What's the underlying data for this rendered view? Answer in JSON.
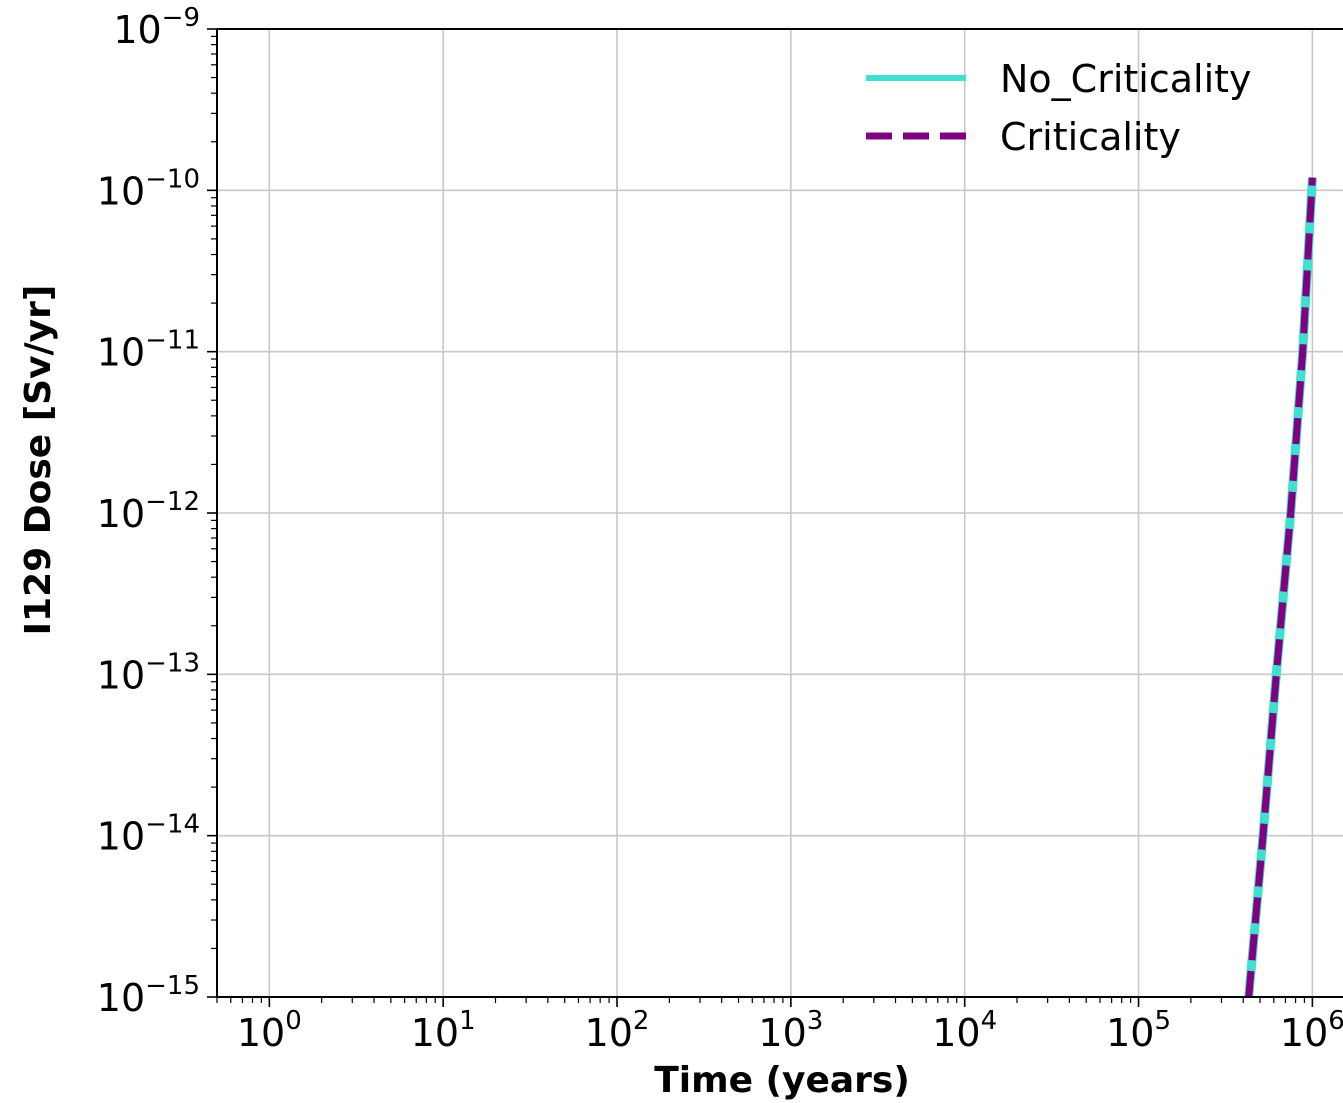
{
  "chart_data": {
    "type": "line",
    "xlabel": "Time (years)",
    "ylabel": "I129 Dose [Sv/yr]",
    "xscale": "log",
    "yscale": "log",
    "xlim": [
      0.5,
      1500000
    ],
    "ylim": [
      1e-15,
      1e-09
    ],
    "grid": true,
    "legend_position": "top-right",
    "x_ticks": [
      {
        "base": "10",
        "exp": "0",
        "value": 1
      },
      {
        "base": "10",
        "exp": "1",
        "value": 10
      },
      {
        "base": "10",
        "exp": "2",
        "value": 100
      },
      {
        "base": "10",
        "exp": "3",
        "value": 1000
      },
      {
        "base": "10",
        "exp": "4",
        "value": 10000
      },
      {
        "base": "10",
        "exp": "5",
        "value": 100000
      },
      {
        "base": "10",
        "exp": "6",
        "value": 1000000
      }
    ],
    "y_ticks": [
      {
        "base": "10",
        "exp": "−9",
        "value": 1e-09
      },
      {
        "base": "10",
        "exp": "−10",
        "value": 1e-10
      },
      {
        "base": "10",
        "exp": "−11",
        "value": 1e-11
      },
      {
        "base": "10",
        "exp": "−12",
        "value": 1e-12
      },
      {
        "base": "10",
        "exp": "−13",
        "value": 1e-13
      },
      {
        "base": "10",
        "exp": "−14",
        "value": 1e-14
      },
      {
        "base": "10",
        "exp": "−15",
        "value": 1e-15
      }
    ],
    "series": [
      {
        "name": "No_Criticality",
        "color": "#40e0d0",
        "style": "solid",
        "x": [
          430000,
          520000,
          620000,
          750000,
          880000,
          1000000
        ],
        "y": [
          1e-15,
          1e-14,
          1e-13,
          1e-12,
          1e-11,
          1.2e-10
        ]
      },
      {
        "name": "Criticality",
        "color": "#800080",
        "style": "dashed",
        "x": [
          430000,
          520000,
          620000,
          750000,
          880000,
          1000000
        ],
        "y": [
          1e-15,
          1e-14,
          1e-13,
          1e-12,
          1e-11,
          1.2e-10
        ]
      }
    ]
  }
}
